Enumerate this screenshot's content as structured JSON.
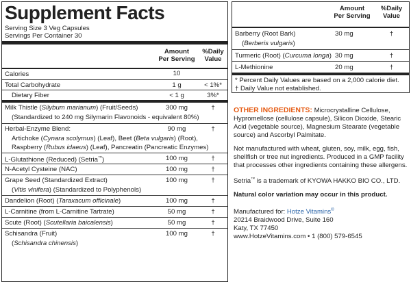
{
  "title": "Supplement Facts",
  "serving_size": "Serving Size 3 Veg Capsules",
  "servings_per_container": "Servings Per Container 30",
  "header": {
    "amount_l1": "Amount",
    "amount_l2": "Per Serving",
    "dv_l1": "%Daily",
    "dv_l2": "Value"
  },
  "rows": {
    "calories": {
      "name": "Calories",
      "amount": "10",
      "dv": ""
    },
    "carb": {
      "name": "Total Carbohydrate",
      "amount": "1 g",
      "dv": "< 1%*"
    },
    "fiber": {
      "name": "Dietary Fiber",
      "amount": "< 1 g",
      "dv": "3%*"
    },
    "milk_thistle": {
      "name_pre": "Milk Thistle (",
      "latin": "Silybum marianum",
      "name_post": ") (Fruit/Seeds)",
      "sub": "(Standardized to 240 mg Silymarin Flavonoids - equivalent 80%)",
      "amount": "300 mg",
      "dv": "†"
    },
    "herbal": {
      "name": "Herbal-Enzyme Blend:",
      "amount": "90 mg",
      "dv": "†",
      "sub1_a": "Artichoke (",
      "sub1_b": "Cynara scolymus",
      "sub1_c": ") (Leaf), Beet (",
      "sub1_d": "Beta vulgaris",
      "sub1_e": ") (Root),",
      "sub2_a": "Raspberry (",
      "sub2_b": "Rubus idaeus",
      "sub2_c": ") (Leaf), Pancreatin (Pancreatic Enzymes)"
    },
    "glutathione": {
      "name": "L-Glutathione (Reduced) (Setria",
      "tm": "™",
      "name_post": ")",
      "amount": "100 mg",
      "dv": "†"
    },
    "nac": {
      "name": "N-Acetyl Cysteine (NAC)",
      "amount": "100 mg",
      "dv": "†"
    },
    "grape": {
      "name": "Grape Seed (Standardized Extract)",
      "sub_pre": "(",
      "latin": "Vitis vinifera",
      "sub_post": ") (Standardized to Polyphenols)",
      "amount": "100 mg",
      "dv": "†"
    },
    "dandelion": {
      "name_pre": "Dandelion (Root) (",
      "latin": "Taraxacum officinale",
      "name_post": ")",
      "amount": "100 mg",
      "dv": "†"
    },
    "carnitine": {
      "name": "L-Carnitine (from L-Carnitine Tartrate)",
      "amount": "50 mg",
      "dv": "†"
    },
    "scute": {
      "name_pre": "Scute (Root) (",
      "latin": "Scutellaria baicalensis",
      "name_post": ")",
      "amount": "50 mg",
      "dv": "†"
    },
    "schisandra": {
      "name": "Schisandra (Fruit)",
      "sub_pre": "(",
      "latin": "Schisandra chinensis",
      "sub_post": ")",
      "amount": "100 mg",
      "dv": "†"
    }
  },
  "right_rows": {
    "barberry": {
      "name": "Barberry (Root Bark)",
      "sub_pre": "(",
      "latin": "Berberis vulgaris",
      "sub_post": ")",
      "amount": "30 mg",
      "dv": "†"
    },
    "turmeric": {
      "name_pre": "Turmeric (Root) (",
      "latin": "Curcuma longa",
      "name_post": ")",
      "amount": "30 mg",
      "dv": "†"
    },
    "methionine": {
      "name": "L-Methionine",
      "amount": "20 mg",
      "dv": "†"
    }
  },
  "footnotes": {
    "percent": "* Percent Daily Values are based on a 2,000 calorie diet.",
    "dagger": "† Daily Value not established."
  },
  "other": {
    "label": "OTHER INGREDIENTS:",
    "text": " Microcrystalline Cellulose, Hypromellose (cellulose capsule), Silicon Dioxide, Stearic Acid (vegetable source), Magnesium Stearate (vegetable source) and Ascorbyl Palmitate."
  },
  "allergen": "Not manufactured with wheat, gluten, soy, milk, egg, fish, shellfish or tree nut ingredients. Produced in a GMP facility that processes other ingredients containing these allergens.",
  "setria": {
    "pre": "Setria",
    "tm": "™",
    "post": " is a trademark of KYOWA HAKKO BIO CO., LTD."
  },
  "color_note": "Natural color variation may occur in this product.",
  "manufacturer": {
    "label": "Manufactured for: ",
    "brand": "Hotze Vitamins",
    "reg": "®",
    "address1": "20214 Braidwood Drive, Suite 160",
    "address2": "Katy, TX 77450",
    "contact": "www.HotzeVitamins.com • 1 (800) 579-6545"
  },
  "colors": {
    "accent_orange": "#e55b13",
    "brand_blue": "#2a64a8",
    "rule": "#222222"
  }
}
